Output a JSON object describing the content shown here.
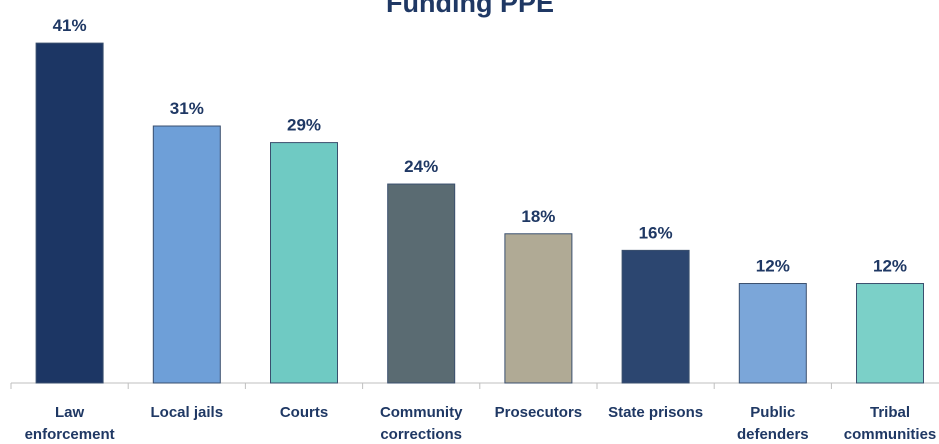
{
  "chart_data": {
    "type": "bar",
    "title": "Funding PPE",
    "categories": [
      "Law enforcement",
      "Local jails",
      "Courts",
      "Community corrections",
      "Prosecutors",
      "State prisons",
      "Public defenders",
      "Tribal communities"
    ],
    "values": [
      41,
      31,
      29,
      24,
      18,
      16,
      12,
      12
    ],
    "value_labels": [
      "41%",
      "31%",
      "29%",
      "24%",
      "18%",
      "16%",
      "12%",
      "12%"
    ],
    "colors": [
      "#1c3664",
      "#6e9fd8",
      "#6fcac3",
      "#5a6b72",
      "#b0aa95",
      "#2c4670",
      "#7ba6d9",
      "#7bd0c8"
    ]
  }
}
